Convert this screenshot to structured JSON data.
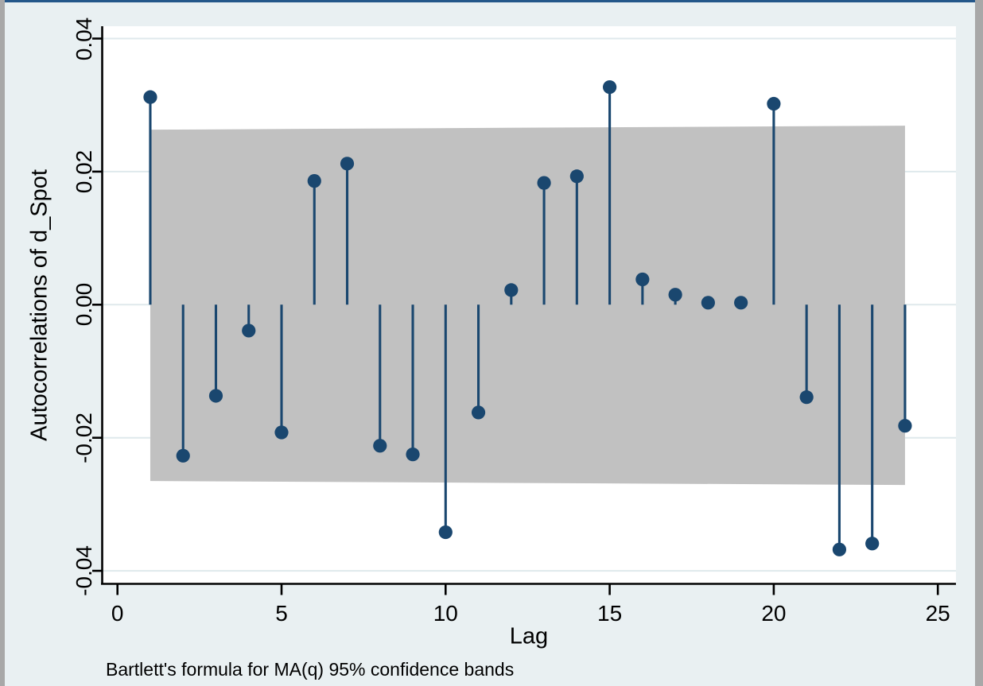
{
  "window": {
    "top_border_color": "#24578a",
    "edge_color": "#a8a8a8",
    "background_color": "#e9f0f2",
    "plot_background_color": "#ffffff"
  },
  "chart_data": {
    "type": "stem",
    "title": "",
    "xlabel": "Lag",
    "ylabel": "Autocorrelations of d_Spot",
    "note": "Bartlett's formula for MA(q) 95% confidence bands",
    "grid": true,
    "legend": "none",
    "xlim": [
      -0.5,
      25.6
    ],
    "ylim": [
      -0.042,
      0.042
    ],
    "x_ticks": [
      "0",
      "5",
      "10",
      "15",
      "20",
      "25"
    ],
    "x_tick_values": [
      0,
      5,
      10,
      15,
      20,
      25
    ],
    "y_ticks": [
      "0.04",
      "0.02",
      "0.00",
      "-0.02",
      "-0.04"
    ],
    "y_tick_values": [
      0.04,
      0.02,
      0.0,
      -0.02,
      -0.04
    ],
    "lags": [
      1,
      2,
      3,
      4,
      5,
      6,
      7,
      8,
      9,
      10,
      11,
      12,
      13,
      14,
      15,
      16,
      17,
      18,
      19,
      20,
      21,
      22,
      23,
      24
    ],
    "values": [
      0.0312,
      -0.0227,
      -0.0137,
      -0.0039,
      -0.0192,
      0.0186,
      0.0212,
      -0.0212,
      -0.0225,
      -0.0342,
      -0.0162,
      0.0022,
      0.0183,
      0.0193,
      0.0327,
      0.0038,
      0.0015,
      0.0003,
      0.0003,
      0.0302,
      -0.0139,
      -0.0368,
      -0.0359,
      -0.0182
    ],
    "confidence_band": {
      "label": "MA(q) 95% confidence band",
      "lag_start": 1,
      "lag_end": 24,
      "upper_start": 0.0263,
      "upper_end": 0.0269,
      "lower_start": -0.0265,
      "lower_end": -0.0271
    },
    "colors": {
      "stem": "#1a476f",
      "marker": "#1a476f",
      "band": "#c1c1c1",
      "grid": "#dfe9ec",
      "axis": "#000000",
      "plot_background": "#ffffff",
      "outer_background": "#e9f0f2"
    }
  }
}
